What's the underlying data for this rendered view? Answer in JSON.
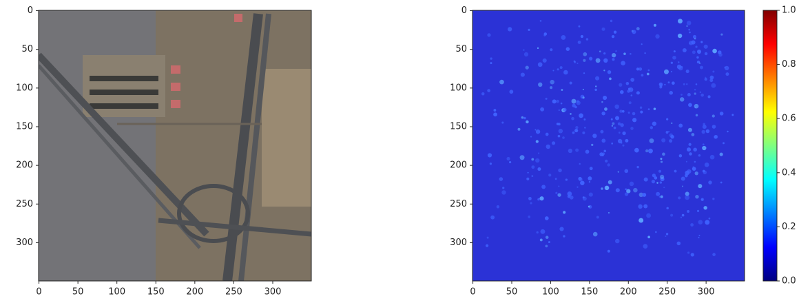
{
  "chart_data": [
    {
      "type": "image",
      "xlim": [
        -0.5,
        349.5
      ],
      "ylim": [
        349.5,
        -0.5
      ],
      "xticks": [
        0,
        50,
        100,
        150,
        200,
        250,
        300
      ],
      "yticks": [
        0,
        50,
        100,
        150,
        200,
        250,
        300
      ]
    },
    {
      "type": "heatmap",
      "xlim": [
        -0.5,
        349.5
      ],
      "ylim": [
        349.5,
        -0.5
      ],
      "xticks": [
        0,
        50,
        100,
        150,
        200,
        250,
        300
      ],
      "yticks": [
        0,
        50,
        100,
        150,
        200,
        250,
        300
      ],
      "colorbar": {
        "colormap": "jet",
        "ylim": [
          0,
          1
        ],
        "yticks": [
          {
            "value": 0,
            "label": "0.0"
          },
          {
            "value": 0.2,
            "label": "0.2"
          },
          {
            "value": 0.4,
            "label": "0.4"
          },
          {
            "value": 0.6,
            "label": "0.6"
          },
          {
            "value": 0.8,
            "label": "0.8"
          },
          {
            "value": 1,
            "label": "1.0"
          }
        ]
      }
    }
  ]
}
